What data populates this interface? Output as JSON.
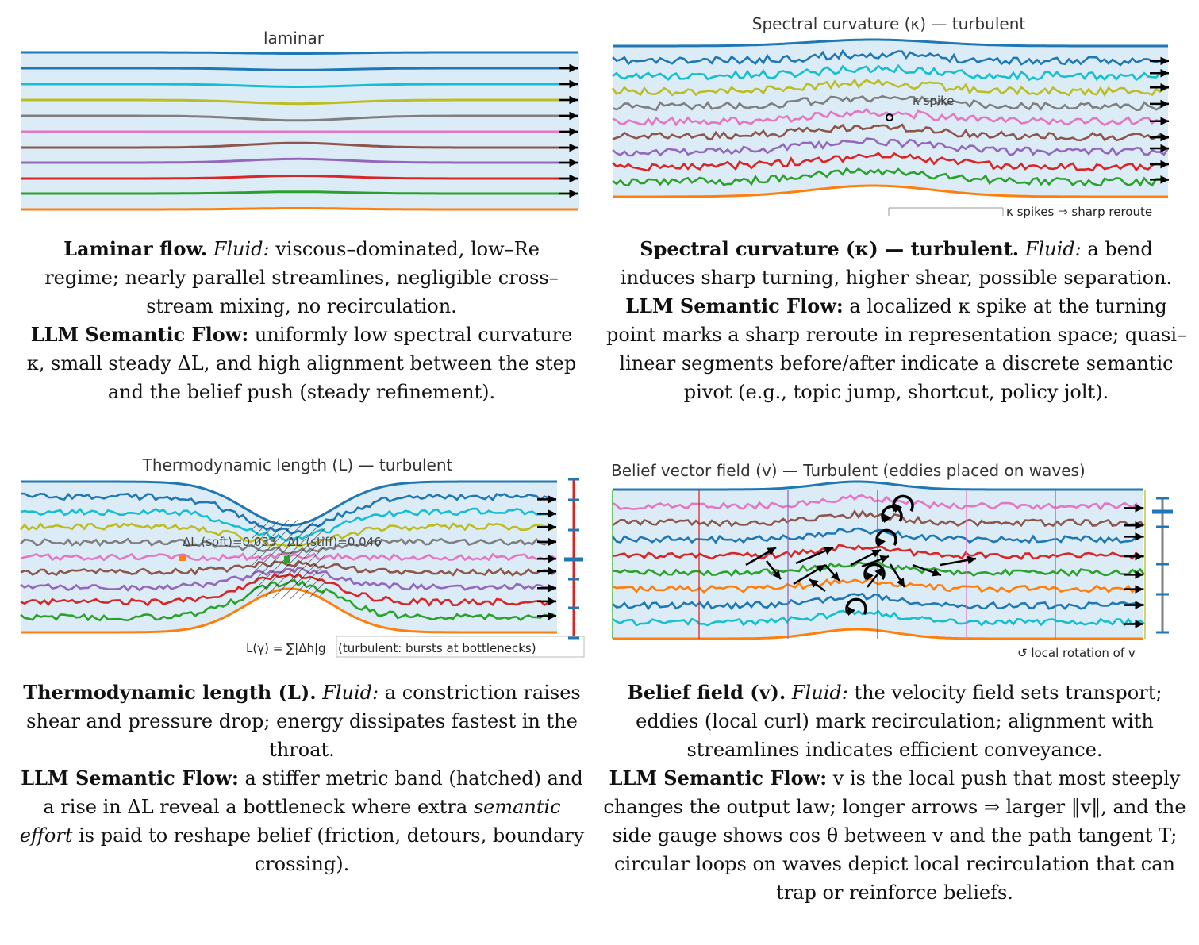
{
  "panels": {
    "laminar": {
      "title": "laminar",
      "caption_bold": "Laminar flow.",
      "caption_fluid_label": "Fluid:",
      "caption_fluid": "viscous–dominated, low–Re regime; nearly parallel streamlines, negligible cross–stream mixing, no recirculation.",
      "llm_label": "LLM Semantic Flow:",
      "llm_text": "uniformly low spectral curvature κ, small steady ΔL, and high alignment between the step and the belief push (steady refinement)."
    },
    "curvature": {
      "title": "Spectral curvature (κ) — turbulent",
      "spike_label": "κ spike",
      "footnote": "κ spikes ⇒ sharp reroute",
      "caption_bold": "Spectral curvature (κ) — turbulent.",
      "caption_fluid_label": "Fluid:",
      "caption_fluid": "a bend induces sharp turning, higher shear, possible separation.",
      "llm_label": "LLM Semantic Flow:",
      "llm_text": "a localized κ spike at the turning point marks a sharp reroute in representation space; quasi–linear segments before/after indicate a discrete semantic pivot (e.g., topic jump, shortcut, policy jolt)."
    },
    "thermo": {
      "title": "Thermodynamic length (L) — turbulent",
      "label_soft": "ΔL (soft)=0.033",
      "label_stiff": "ΔL (stiff)=0.046",
      "footnote_formula": "L(γ) = ∑|Δh|g",
      "footnote_text": "(turbulent: bursts at bottlenecks)",
      "caption_bold": "Thermodynamic length (L).",
      "caption_fluid_label": "Fluid:",
      "caption_fluid": "a constriction raises shear and pressure drop; energy dissipates fastest in the throat.",
      "llm_label": "LLM Semantic Flow:",
      "llm_text_a": "a stiffer metric band (hatched) and a rise in ΔL reveal a bottleneck where extra",
      "llm_effort": "semantic effort",
      "llm_text_b": "is paid to reshape belief (friction, detours, boundary crossing)."
    },
    "belief": {
      "title": "Belief vector field (v) — Turbulent (eddies placed on waves)",
      "footnote": "↺ local rotation of v",
      "caption_bold": "Belief field (v).",
      "caption_fluid_label": "Fluid:",
      "caption_fluid": "the velocity field sets transport; eddies (local curl) mark recirculation; alignment with streamlines indicates efficient conveyance.",
      "llm_label": "LLM Semantic Flow:",
      "llm_text": "v is the local push that most steeply changes the output law; longer arrows ⇒ larger ‖v‖, and the side gauge shows cos θ between v and the path tangent T; circular loops on waves depict local recirculation that can trap or reinforce beliefs."
    }
  },
  "colors": {
    "channel_fill": "#dcecf7",
    "wall_top": "#1f77b4",
    "wall_bottom": "#ff7f0e",
    "streamlines": [
      "#1f77b4",
      "#17becf",
      "#bcbd22",
      "#7f7f7f",
      "#e377c2",
      "#8c564b",
      "#9467bd",
      "#d62728",
      "#2ca02c"
    ]
  }
}
